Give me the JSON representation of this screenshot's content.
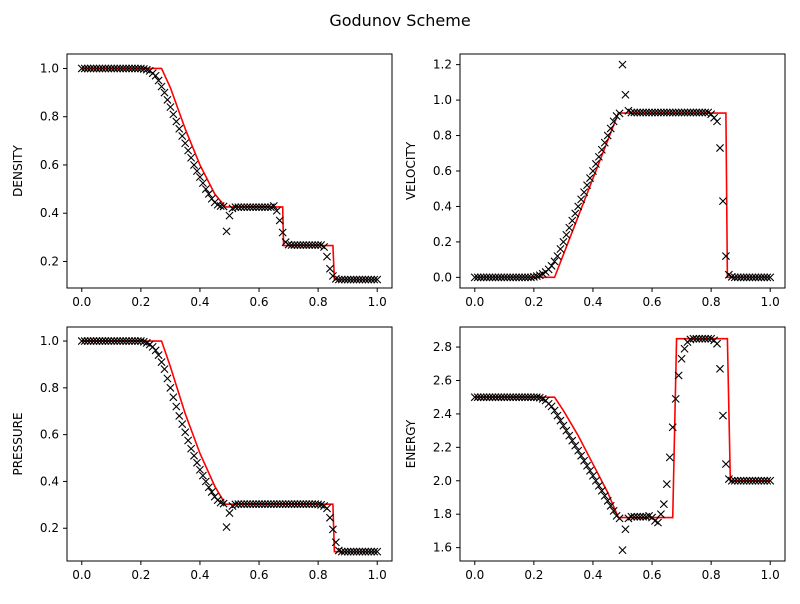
{
  "figure": {
    "title": "Godunov Scheme"
  },
  "chart_data": [
    {
      "type": "line",
      "ylabel": "DENSITY",
      "xlim": [
        -0.05,
        1.05
      ],
      "ylim": [
        0.09,
        1.06
      ],
      "xticks": [
        "0.0",
        "0.2",
        "0.4",
        "0.6",
        "0.8",
        "1.0"
      ],
      "yticks": [
        "0.2",
        "0.4",
        "0.6",
        "0.8",
        "1.0"
      ],
      "series": [
        {
          "kind": "line",
          "color": "#ff0000",
          "x": [
            0,
            0.26,
            0.27,
            0.3,
            0.35,
            0.4,
            0.45,
            0.486,
            0.5,
            0.68,
            0.683,
            0.85,
            0.855,
            1.0
          ],
          "y": [
            1.0,
            1.0,
            1.0,
            0.92,
            0.75,
            0.6,
            0.48,
            0.426,
            0.426,
            0.426,
            0.266,
            0.266,
            0.125,
            0.125
          ]
        },
        {
          "kind": "scatter",
          "color": "#000000",
          "marker": "x",
          "x": [
            0,
            0.01,
            0.02,
            0.03,
            0.04,
            0.05,
            0.06,
            0.07,
            0.08,
            0.09,
            0.1,
            0.11,
            0.12,
            0.13,
            0.14,
            0.15,
            0.16,
            0.17,
            0.18,
            0.19,
            0.2,
            0.21,
            0.22,
            0.23,
            0.24,
            0.25,
            0.26,
            0.27,
            0.28,
            0.29,
            0.3,
            0.31,
            0.32,
            0.33,
            0.34,
            0.35,
            0.36,
            0.37,
            0.38,
            0.39,
            0.4,
            0.41,
            0.42,
            0.43,
            0.44,
            0.45,
            0.46,
            0.47,
            0.48,
            0.49,
            0.5,
            0.51,
            0.52,
            0.53,
            0.54,
            0.55,
            0.56,
            0.57,
            0.58,
            0.59,
            0.6,
            0.61,
            0.62,
            0.63,
            0.64,
            0.65,
            0.66,
            0.67,
            0.68,
            0.69,
            0.7,
            0.71,
            0.72,
            0.73,
            0.74,
            0.75,
            0.76,
            0.77,
            0.78,
            0.79,
            0.8,
            0.81,
            0.82,
            0.83,
            0.84,
            0.85,
            0.86,
            0.87,
            0.88,
            0.89,
            0.9,
            0.91,
            0.92,
            0.93,
            0.94,
            0.95,
            0.96,
            0.97,
            0.98,
            0.99,
            1.0
          ],
          "y": [
            1.0,
            1.0,
            1.0,
            1.0,
            1.0,
            1.0,
            1.0,
            1.0,
            1.0,
            1.0,
            1.0,
            1.0,
            1.0,
            1.0,
            1.0,
            1.0,
            1.0,
            1.0,
            1.0,
            1.0,
            1.0,
            0.998,
            0.995,
            0.99,
            0.98,
            0.97,
            0.95,
            0.925,
            0.9,
            0.87,
            0.84,
            0.81,
            0.78,
            0.75,
            0.72,
            0.69,
            0.66,
            0.63,
            0.6,
            0.575,
            0.55,
            0.525,
            0.5,
            0.48,
            0.46,
            0.445,
            0.435,
            0.43,
            0.428,
            0.325,
            0.39,
            0.42,
            0.425,
            0.425,
            0.425,
            0.425,
            0.425,
            0.425,
            0.425,
            0.425,
            0.425,
            0.425,
            0.425,
            0.425,
            0.425,
            0.43,
            0.41,
            0.37,
            0.32,
            0.28,
            0.27,
            0.268,
            0.268,
            0.268,
            0.268,
            0.268,
            0.268,
            0.268,
            0.268,
            0.268,
            0.268,
            0.268,
            0.26,
            0.22,
            0.17,
            0.14,
            0.128,
            0.125,
            0.125,
            0.125,
            0.125,
            0.125,
            0.125,
            0.125,
            0.125,
            0.125,
            0.125,
            0.125,
            0.125,
            0.125,
            0.125
          ]
        }
      ]
    },
    {
      "type": "line",
      "ylabel": "VELOCITY",
      "xlim": [
        -0.05,
        1.05
      ],
      "ylim": [
        -0.06,
        1.26
      ],
      "xticks": [
        "0.0",
        "0.2",
        "0.4",
        "0.6",
        "0.8",
        "1.0"
      ],
      "yticks": [
        "0.0",
        "0.2",
        "0.4",
        "0.6",
        "0.8",
        "1.0",
        "1.2"
      ],
      "series": [
        {
          "kind": "line",
          "color": "#ff0000",
          "x": [
            0,
            0.26,
            0.27,
            0.486,
            0.5,
            0.85,
            0.855,
            1.0
          ],
          "y": [
            0,
            0,
            0,
            0.927,
            0.927,
            0.927,
            0,
            0
          ]
        },
        {
          "kind": "scatter",
          "color": "#000000",
          "marker": "x",
          "x": [
            0,
            0.01,
            0.02,
            0.03,
            0.04,
            0.05,
            0.06,
            0.07,
            0.08,
            0.09,
            0.1,
            0.11,
            0.12,
            0.13,
            0.14,
            0.15,
            0.16,
            0.17,
            0.18,
            0.19,
            0.2,
            0.21,
            0.22,
            0.23,
            0.24,
            0.25,
            0.26,
            0.27,
            0.28,
            0.29,
            0.3,
            0.31,
            0.32,
            0.33,
            0.34,
            0.35,
            0.36,
            0.37,
            0.38,
            0.39,
            0.4,
            0.41,
            0.42,
            0.43,
            0.44,
            0.45,
            0.46,
            0.47,
            0.48,
            0.49,
            0.5,
            0.51,
            0.52,
            0.53,
            0.54,
            0.55,
            0.56,
            0.57,
            0.58,
            0.59,
            0.6,
            0.61,
            0.62,
            0.63,
            0.64,
            0.65,
            0.66,
            0.67,
            0.68,
            0.69,
            0.7,
            0.71,
            0.72,
            0.73,
            0.74,
            0.75,
            0.76,
            0.77,
            0.78,
            0.79,
            0.8,
            0.81,
            0.82,
            0.83,
            0.84,
            0.85,
            0.86,
            0.87,
            0.88,
            0.89,
            0.9,
            0.91,
            0.92,
            0.93,
            0.94,
            0.95,
            0.96,
            0.97,
            0.98,
            0.99,
            1.0
          ],
          "y": [
            0,
            0,
            0,
            0,
            0,
            0,
            0,
            0,
            0,
            0,
            0,
            0,
            0,
            0,
            0,
            0,
            0,
            0,
            0,
            0,
            0.003,
            0.007,
            0.012,
            0.02,
            0.03,
            0.045,
            0.065,
            0.09,
            0.12,
            0.16,
            0.2,
            0.24,
            0.28,
            0.32,
            0.36,
            0.4,
            0.44,
            0.48,
            0.52,
            0.56,
            0.6,
            0.64,
            0.68,
            0.72,
            0.76,
            0.8,
            0.84,
            0.88,
            0.91,
            0.925,
            1.2,
            1.03,
            0.94,
            0.93,
            0.93,
            0.93,
            0.93,
            0.93,
            0.93,
            0.93,
            0.93,
            0.93,
            0.93,
            0.93,
            0.93,
            0.93,
            0.93,
            0.93,
            0.93,
            0.93,
            0.93,
            0.93,
            0.93,
            0.93,
            0.93,
            0.93,
            0.93,
            0.93,
            0.93,
            0.93,
            0.92,
            0.9,
            0.88,
            0.73,
            0.43,
            0.12,
            0.015,
            0.003,
            0,
            0,
            0,
            0,
            0,
            0,
            0,
            0,
            0,
            0,
            0,
            0,
            0
          ]
        }
      ]
    },
    {
      "type": "line",
      "ylabel": "PRESSURE",
      "xlim": [
        -0.05,
        1.05
      ],
      "ylim": [
        0.06,
        1.06
      ],
      "xticks": [
        "0.0",
        "0.2",
        "0.4",
        "0.6",
        "0.8",
        "1.0"
      ],
      "yticks": [
        "0.2",
        "0.4",
        "0.6",
        "0.8",
        "1.0"
      ],
      "series": [
        {
          "kind": "line",
          "color": "#ff0000",
          "x": [
            0,
            0.26,
            0.27,
            0.3,
            0.35,
            0.4,
            0.45,
            0.486,
            0.5,
            0.85,
            0.855,
            1.0
          ],
          "y": [
            1.0,
            1.0,
            1.0,
            0.89,
            0.69,
            0.52,
            0.38,
            0.303,
            0.303,
            0.303,
            0.1,
            0.1
          ]
        },
        {
          "kind": "scatter",
          "color": "#000000",
          "marker": "x",
          "x": [
            0,
            0.01,
            0.02,
            0.03,
            0.04,
            0.05,
            0.06,
            0.07,
            0.08,
            0.09,
            0.1,
            0.11,
            0.12,
            0.13,
            0.14,
            0.15,
            0.16,
            0.17,
            0.18,
            0.19,
            0.2,
            0.21,
            0.22,
            0.23,
            0.24,
            0.25,
            0.26,
            0.27,
            0.28,
            0.29,
            0.3,
            0.31,
            0.32,
            0.33,
            0.34,
            0.35,
            0.36,
            0.37,
            0.38,
            0.39,
            0.4,
            0.41,
            0.42,
            0.43,
            0.44,
            0.45,
            0.46,
            0.47,
            0.48,
            0.49,
            0.5,
            0.51,
            0.52,
            0.53,
            0.54,
            0.55,
            0.56,
            0.57,
            0.58,
            0.59,
            0.6,
            0.61,
            0.62,
            0.63,
            0.64,
            0.65,
            0.66,
            0.67,
            0.68,
            0.69,
            0.7,
            0.71,
            0.72,
            0.73,
            0.74,
            0.75,
            0.76,
            0.77,
            0.78,
            0.79,
            0.8,
            0.81,
            0.82,
            0.83,
            0.84,
            0.85,
            0.86,
            0.87,
            0.88,
            0.89,
            0.9,
            0.91,
            0.92,
            0.93,
            0.94,
            0.95,
            0.96,
            0.97,
            0.98,
            0.99,
            1.0
          ],
          "y": [
            1.0,
            1.0,
            1.0,
            1.0,
            1.0,
            1.0,
            1.0,
            1.0,
            1.0,
            1.0,
            1.0,
            1.0,
            1.0,
            1.0,
            1.0,
            1.0,
            1.0,
            1.0,
            1.0,
            1.0,
            1.0,
            0.997,
            0.992,
            0.985,
            0.975,
            0.96,
            0.94,
            0.91,
            0.88,
            0.84,
            0.8,
            0.76,
            0.72,
            0.68,
            0.645,
            0.61,
            0.575,
            0.54,
            0.51,
            0.48,
            0.45,
            0.425,
            0.4,
            0.375,
            0.355,
            0.335,
            0.32,
            0.31,
            0.305,
            0.205,
            0.265,
            0.295,
            0.302,
            0.303,
            0.303,
            0.303,
            0.303,
            0.303,
            0.303,
            0.303,
            0.303,
            0.303,
            0.303,
            0.303,
            0.303,
            0.303,
            0.303,
            0.303,
            0.303,
            0.303,
            0.303,
            0.303,
            0.303,
            0.303,
            0.303,
            0.303,
            0.303,
            0.303,
            0.303,
            0.303,
            0.302,
            0.3,
            0.295,
            0.285,
            0.245,
            0.195,
            0.14,
            0.105,
            0.1,
            0.1,
            0.1,
            0.1,
            0.1,
            0.1,
            0.1,
            0.1,
            0.1,
            0.1,
            0.1,
            0.1,
            0.1
          ]
        }
      ]
    },
    {
      "type": "line",
      "ylabel": "ENERGY",
      "xlim": [
        -0.05,
        1.05
      ],
      "ylim": [
        1.52,
        2.92
      ],
      "xticks": [
        "0.0",
        "0.2",
        "0.4",
        "0.6",
        "0.8",
        "1.0"
      ],
      "yticks": [
        "1.6",
        "1.8",
        "2.0",
        "2.2",
        "2.4",
        "2.6",
        "2.8"
      ],
      "series": [
        {
          "kind": "line",
          "color": "#ff0000",
          "x": [
            0,
            0.26,
            0.27,
            0.3,
            0.35,
            0.4,
            0.45,
            0.486,
            0.5,
            0.67,
            0.683,
            0.85,
            0.855,
            0.865,
            1.0
          ],
          "y": [
            2.5,
            2.5,
            2.5,
            2.42,
            2.27,
            2.1,
            1.93,
            1.78,
            1.78,
            1.78,
            2.85,
            2.85,
            2.85,
            2.0,
            2.0
          ]
        },
        {
          "kind": "scatter",
          "color": "#000000",
          "marker": "x",
          "x": [
            0,
            0.01,
            0.02,
            0.03,
            0.04,
            0.05,
            0.06,
            0.07,
            0.08,
            0.09,
            0.1,
            0.11,
            0.12,
            0.13,
            0.14,
            0.15,
            0.16,
            0.17,
            0.18,
            0.19,
            0.2,
            0.21,
            0.22,
            0.23,
            0.24,
            0.25,
            0.26,
            0.27,
            0.28,
            0.29,
            0.3,
            0.31,
            0.32,
            0.33,
            0.34,
            0.35,
            0.36,
            0.37,
            0.38,
            0.39,
            0.4,
            0.41,
            0.42,
            0.43,
            0.44,
            0.45,
            0.46,
            0.47,
            0.48,
            0.49,
            0.5,
            0.51,
            0.52,
            0.53,
            0.54,
            0.55,
            0.56,
            0.57,
            0.58,
            0.59,
            0.6,
            0.61,
            0.62,
            0.63,
            0.64,
            0.65,
            0.66,
            0.67,
            0.68,
            0.69,
            0.7,
            0.71,
            0.72,
            0.73,
            0.74,
            0.75,
            0.76,
            0.77,
            0.78,
            0.79,
            0.8,
            0.81,
            0.82,
            0.83,
            0.84,
            0.85,
            0.86,
            0.87,
            0.88,
            0.89,
            0.9,
            0.91,
            0.92,
            0.93,
            0.94,
            0.95,
            0.96,
            0.97,
            0.98,
            0.99,
            1.0
          ],
          "y": [
            2.5,
            2.5,
            2.5,
            2.5,
            2.5,
            2.5,
            2.5,
            2.5,
            2.5,
            2.5,
            2.5,
            2.5,
            2.5,
            2.5,
            2.5,
            2.5,
            2.5,
            2.5,
            2.5,
            2.5,
            2.5,
            2.5,
            2.497,
            2.49,
            2.48,
            2.46,
            2.445,
            2.42,
            2.39,
            2.36,
            2.33,
            2.3,
            2.27,
            2.24,
            2.21,
            2.18,
            2.15,
            2.12,
            2.09,
            2.06,
            2.03,
            2.0,
            1.97,
            1.94,
            1.91,
            1.88,
            1.85,
            1.82,
            1.79,
            1.775,
            1.585,
            1.71,
            1.775,
            1.785,
            1.785,
            1.785,
            1.785,
            1.785,
            1.785,
            1.79,
            1.78,
            1.76,
            1.75,
            1.8,
            1.86,
            1.98,
            2.14,
            2.32,
            2.49,
            2.63,
            2.73,
            2.79,
            2.83,
            2.845,
            2.85,
            2.85,
            2.85,
            2.85,
            2.85,
            2.85,
            2.85,
            2.84,
            2.82,
            2.67,
            2.39,
            2.1,
            2.01,
            2.0,
            2.0,
            2.0,
            2.0,
            2.0,
            2.0,
            2.0,
            2.0,
            2.0,
            2.0,
            2.0,
            2.0,
            2.0,
            2.0
          ]
        }
      ]
    }
  ]
}
